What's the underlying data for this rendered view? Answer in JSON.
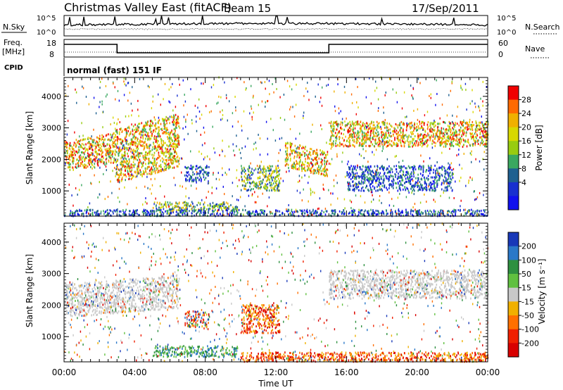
{
  "header": {
    "title": "Christmas Valley East (fitACF)",
    "beam": "Beam 15",
    "date": "17/Sep/2011"
  },
  "meta_panel": {
    "nsky_label": "N.Sky",
    "nsearch_label": "N.Search",
    "nsky_ticks": [
      "10^5",
      "10^0"
    ],
    "nsearch_ticks": [
      "10^5",
      "10^0"
    ],
    "freq_label_1": "Freq.",
    "freq_label_2": "[MHz]",
    "freq_ticks": [
      "18",
      "8"
    ],
    "nave_label": "Nave",
    "nave_ticks": [
      "60",
      "0"
    ],
    "cpid_label": "CPID",
    "cpid_text": "normal (fast) 151 IF",
    "freq_steps": [
      {
        "start_h": 0,
        "end_h": 3.0,
        "level": "high"
      },
      {
        "start_h": 3.0,
        "end_h": 15.0,
        "level": "low"
      },
      {
        "start_h": 15.0,
        "end_h": 24.0,
        "level": "high"
      }
    ]
  },
  "chart_data": [
    {
      "type": "heatmap",
      "name": "power",
      "xlabel": "",
      "ylabel": "Slant Range [km]",
      "xlim": [
        0,
        24
      ],
      "ylim": [
        200,
        4600
      ],
      "yticks": [
        1000,
        2000,
        3000,
        4000
      ],
      "colorbar": {
        "label": "Power [dB]",
        "ticks": [
          "28",
          "24",
          "20",
          "16",
          "12",
          "8",
          "4"
        ],
        "colors": [
          "#f00000",
          "#ff6a00",
          "#f0b000",
          "#d8d800",
          "#98cc10",
          "#3aa860",
          "#1e6090",
          "#1830d0",
          "#1010ee"
        ]
      },
      "features": [
        {
          "t0": 0.0,
          "t1": 2.9,
          "r0": 1750,
          "r1": 2700,
          "slope": 0.28,
          "intensity": "high"
        },
        {
          "t0": 2.9,
          "t1": 6.5,
          "r0": 1500,
          "r1": 3200,
          "slope": 0.5,
          "intensity": "high"
        },
        {
          "t0": 12.5,
          "t1": 14.9,
          "r0": 1600,
          "r1": 2400,
          "slope": -0.3,
          "intensity": "high"
        },
        {
          "t0": 15.0,
          "t1": 24.0,
          "r0": 2400,
          "r1": 3200,
          "slope": 0.0,
          "intensity": "high"
        },
        {
          "t0": 10.0,
          "t1": 12.2,
          "r0": 1000,
          "r1": 1800,
          "slope": 0.0,
          "intensity": "mid"
        },
        {
          "t0": 6.8,
          "t1": 8.2,
          "r0": 1300,
          "r1": 1800,
          "slope": 0.0,
          "intensity": "low"
        },
        {
          "t0": 5.0,
          "t1": 9.8,
          "r0": 350,
          "r1": 650,
          "slope": 0.0,
          "intensity": "mid"
        },
        {
          "t0": 16.0,
          "t1": 22.0,
          "r0": 1000,
          "r1": 1800,
          "slope": 0.0,
          "intensity": "low"
        },
        {
          "t0": 0.0,
          "t1": 24.0,
          "r0": 200,
          "r1": 400,
          "slope": 0.0,
          "intensity": "low"
        }
      ]
    },
    {
      "type": "heatmap",
      "name": "velocity",
      "xlabel": "Time UT",
      "ylabel": "Slant Range [km]",
      "xlim": [
        0,
        24
      ],
      "ylim": [
        200,
        4600
      ],
      "xticks": [
        "00:00",
        "04:00",
        "08:00",
        "12:00",
        "16:00",
        "20:00",
        "00:00"
      ],
      "yticks": [
        1000,
        2000,
        3000,
        4000
      ],
      "colorbar": {
        "label": "Velocity [m s⁻¹]",
        "ticks": [
          "200",
          "100",
          "50",
          "15",
          "-15",
          "-50",
          "-100",
          "-200"
        ],
        "colors": [
          "#1838b8",
          "#2a78c8",
          "#2e9040",
          "#60c040",
          "#c8c8c8",
          "#f0b000",
          "#ff7000",
          "#f02000",
          "#d80000"
        ]
      },
      "features": [
        {
          "t0": 0.0,
          "t1": 6.5,
          "r0": 1750,
          "r1": 2800,
          "slope": 0.3,
          "color": "ground"
        },
        {
          "t0": 15.0,
          "t1": 24.0,
          "r0": 2200,
          "r1": 3100,
          "slope": 0.0,
          "color": "ground"
        },
        {
          "t0": 10.0,
          "t1": 12.2,
          "r0": 1100,
          "r1": 2000,
          "slope": 0.0,
          "color": "away"
        },
        {
          "t0": 6.8,
          "t1": 8.2,
          "r0": 1300,
          "r1": 1800,
          "slope": 0.0,
          "color": "mixed"
        },
        {
          "t0": 5.0,
          "t1": 9.8,
          "r0": 350,
          "r1": 700,
          "slope": 0.0,
          "color": "toward"
        },
        {
          "t0": 10.0,
          "t1": 24.0,
          "r0": 200,
          "r1": 500,
          "slope": 0.0,
          "color": "away"
        }
      ]
    }
  ]
}
